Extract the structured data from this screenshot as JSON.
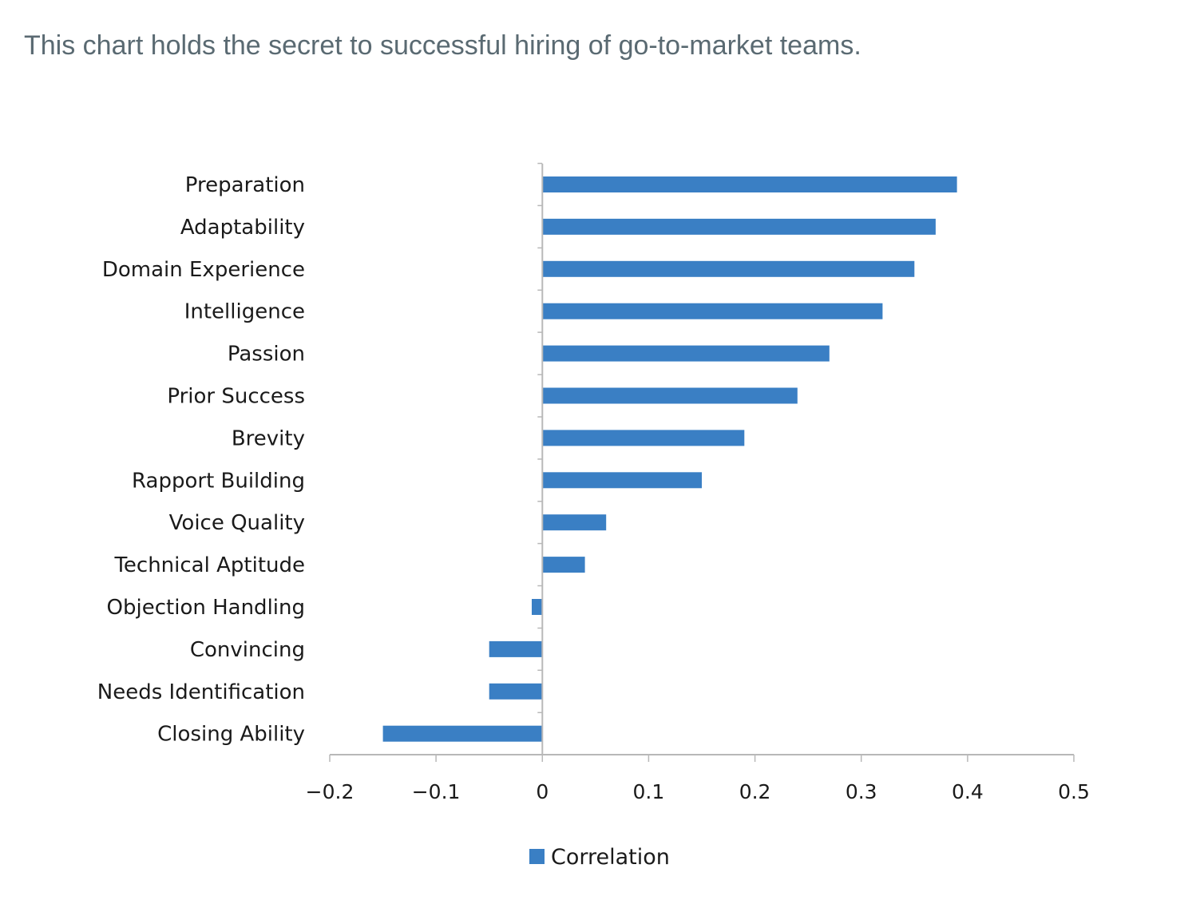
{
  "caption": "This chart holds the secret to successful hiring of go-to-market teams.",
  "colors": {
    "bar": "#3a7fc4",
    "axis": "#b8b8b8",
    "caption": "#5a6a72"
  },
  "chart_data": {
    "type": "bar",
    "orientation": "horizontal",
    "categories": [
      "Preparation",
      "Adaptability",
      "Domain Experience",
      "Intelligence",
      "Passion",
      "Prior Success",
      "Brevity",
      "Rapport Building",
      "Voice Quality",
      "Technical Aptitude",
      "Objection Handling",
      "Convincing",
      "Needs Identification",
      "Closing Ability"
    ],
    "series": [
      {
        "name": "Correlation",
        "values": [
          0.39,
          0.37,
          0.35,
          0.32,
          0.27,
          0.24,
          0.19,
          0.15,
          0.06,
          0.04,
          -0.01,
          -0.05,
          -0.05,
          -0.15
        ]
      }
    ],
    "xlim": [
      -0.2,
      0.5
    ],
    "xticks": [
      -0.2,
      -0.1,
      0,
      0.1,
      0.2,
      0.3,
      0.4,
      0.5
    ],
    "xtick_labels": [
      "−0.2",
      "−0.1",
      "0",
      "0.1",
      "0.2",
      "0.3",
      "0.4",
      "0.5"
    ],
    "grid": false,
    "legend": "bottom"
  }
}
